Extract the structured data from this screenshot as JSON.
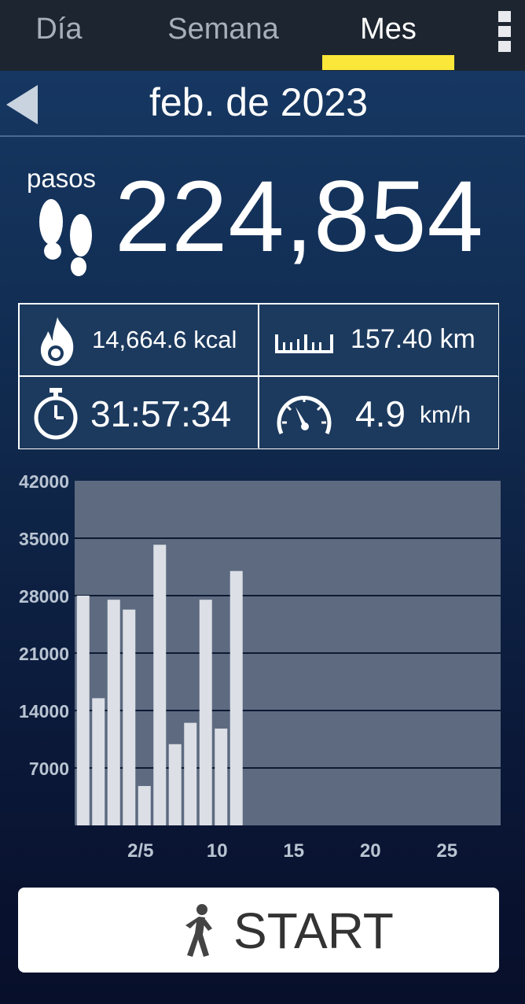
{
  "tabs": [
    {
      "label": "Día",
      "active": false
    },
    {
      "label": "Semana",
      "active": false
    },
    {
      "label": "Mes",
      "active": true
    }
  ],
  "accent_color": "#fbe73a",
  "header": {
    "title": "feb. de 2023"
  },
  "steps": {
    "label": "pasos",
    "value": "224,854"
  },
  "stats": {
    "calories": "14,664.6 kcal",
    "distance": "157.40 km",
    "duration": "31:57:34",
    "speed_value": "4.9",
    "speed_unit": "km/h"
  },
  "icons": [
    "menu-dots-icon",
    "back-arrow-icon",
    "footprints-icon",
    "flame-icon",
    "ruler-icon",
    "stopwatch-icon",
    "speedometer-icon",
    "walker-icon"
  ],
  "chart_data": {
    "type": "bar",
    "x": [
      1,
      2,
      3,
      4,
      5,
      6,
      7,
      8,
      9,
      10,
      11
    ],
    "values": [
      28000,
      15500,
      27500,
      26300,
      4800,
      34200,
      9900,
      12500,
      27500,
      11800,
      31000
    ],
    "xlim": [
      1,
      28
    ],
    "ylim": [
      0,
      42000
    ],
    "yticks": [
      "42000",
      "35000",
      "28000",
      "21000",
      "14000",
      "7000"
    ],
    "xticks": [
      {
        "day": 5,
        "label": "2/5"
      },
      {
        "day": 10,
        "label": "10"
      },
      {
        "day": 15,
        "label": "15"
      },
      {
        "day": 20,
        "label": "20"
      },
      {
        "day": 25,
        "label": "25"
      }
    ],
    "grid": true
  },
  "start_button": {
    "label": "START"
  }
}
